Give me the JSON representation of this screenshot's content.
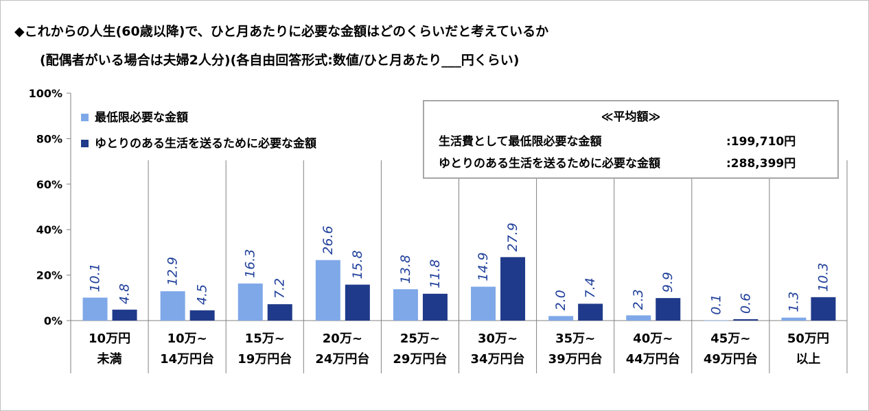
{
  "title": {
    "line1": "◆これからの人生(60歳以降)で、ひと月あたりに必要な金額はどのくらいだと考えているか",
    "line2": "(配偶者がいる場合は夫婦2人分)(各自由回答形式:数値/ひと月あたり___円くらい)"
  },
  "legend": {
    "items": [
      {
        "label": "最低限必要な金額",
        "color": "#7fa8e8"
      },
      {
        "label": "ゆとりのある生活を送るために必要な金額",
        "color": "#1f3a8a"
      }
    ]
  },
  "average_box": {
    "heading": "≪平均額≫",
    "rows": [
      {
        "label": "生活費として最低限必要な金額",
        "value": ":199,710円"
      },
      {
        "label": "ゆとりのある生活を送るために必要な金額",
        "value": ":288,399円"
      }
    ]
  },
  "chart_data": {
    "type": "bar",
    "categories": [
      [
        "10万円",
        "未満"
      ],
      [
        "10万~",
        "14万円台"
      ],
      [
        "15万~",
        "19万円台"
      ],
      [
        "20万~",
        "24万円台"
      ],
      [
        "25万~",
        "29万円台"
      ],
      [
        "30万~",
        "34万円台"
      ],
      [
        "35万~",
        "39万円台"
      ],
      [
        "40万~",
        "44万円台"
      ],
      [
        "45万~",
        "49万円台"
      ],
      [
        "50万円",
        "以上"
      ]
    ],
    "series": [
      {
        "name": "最低限必要な金額",
        "values": [
          10.1,
          12.9,
          16.3,
          26.6,
          13.8,
          14.9,
          2.0,
          2.3,
          0.1,
          1.3
        ],
        "labels": [
          "10.1",
          "12.9",
          "16.3",
          "26.6",
          "13.8",
          "14.9",
          "2.0",
          "2.3",
          "0.1",
          "1.3"
        ],
        "color": "#7fa8e8"
      },
      {
        "name": "ゆとりのある生活を送るために必要な金額",
        "values": [
          4.8,
          4.5,
          7.2,
          15.8,
          11.8,
          27.9,
          7.4,
          9.9,
          0.6,
          10.3
        ],
        "labels": [
          "4.8",
          "4.5",
          "7.2",
          "15.8",
          "11.8",
          "27.9",
          "7.4",
          "9.9",
          "0.6",
          "10.3"
        ],
        "color": "#1f3a8a"
      }
    ],
    "y_ticks": [
      "0%",
      "20%",
      "40%",
      "60%",
      "80%",
      "100%"
    ],
    "ylim": [
      0,
      100
    ],
    "grid": false,
    "legend_position": "top-left"
  }
}
